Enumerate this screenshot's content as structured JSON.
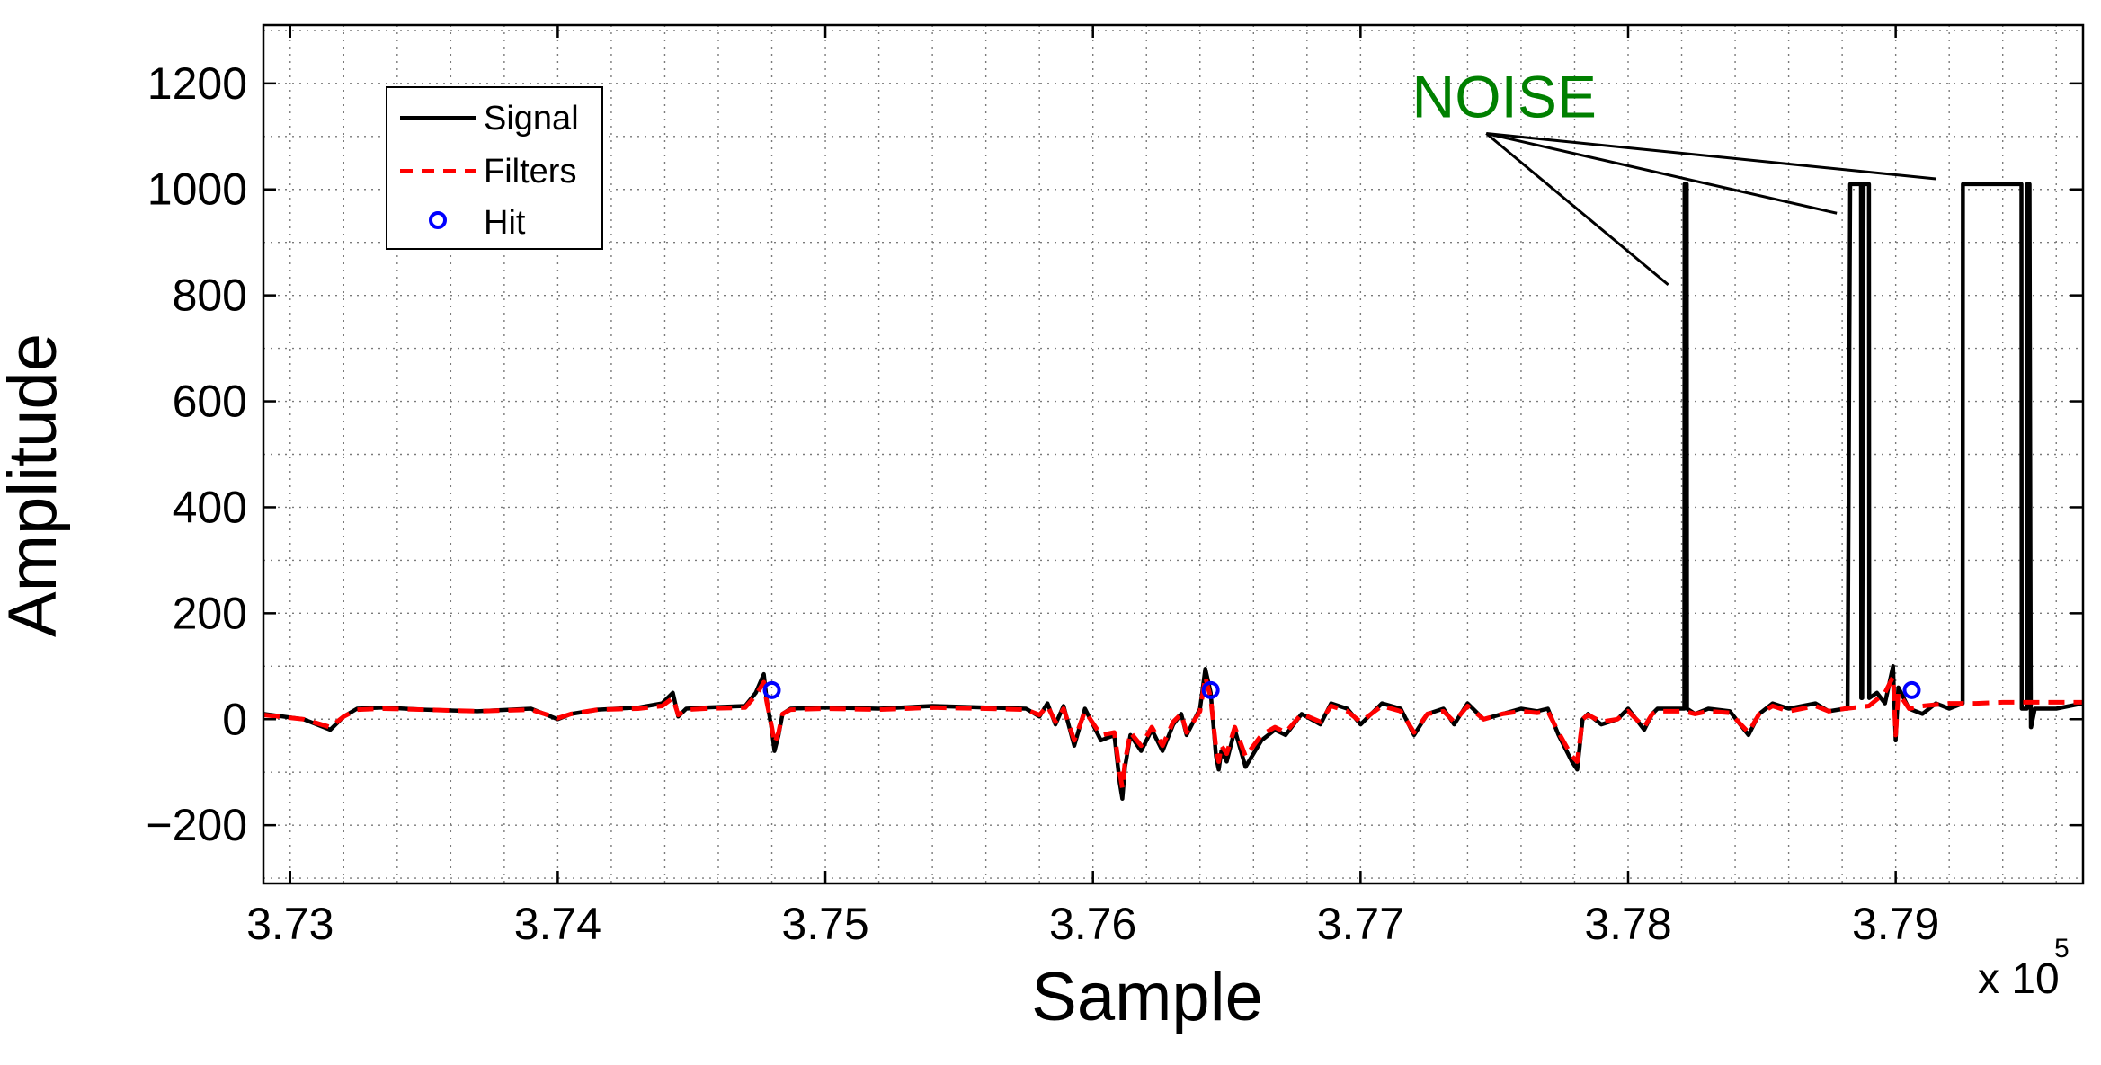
{
  "chart_data": {
    "type": "line",
    "xlabel": "Sample",
    "ylabel": "Amplitude",
    "xlim": [
      372900,
      379700
    ],
    "ylim": [
      -310,
      1310
    ],
    "x_exponent_label": "x 10",
    "x_exponent_power": "5",
    "x_ticks": [
      373000,
      374000,
      375000,
      376000,
      377000,
      378000,
      379000
    ],
    "x_tick_labels": [
      "3.73",
      "3.74",
      "3.75",
      "3.76",
      "3.77",
      "3.78",
      "3.79"
    ],
    "y_ticks": [
      -200,
      0,
      200,
      400,
      600,
      800,
      1000,
      1200
    ],
    "y_tick_labels": [
      "−200",
      "0",
      "200",
      "400",
      "600",
      "800",
      "1000",
      "1200"
    ],
    "grid": true,
    "legend_position": "top-left",
    "legend": [
      {
        "label": "Signal",
        "style": "solid",
        "color": "#000000"
      },
      {
        "label": "Filters",
        "style": "dashed",
        "color": "#ff0000"
      },
      {
        "label": "Hit",
        "style": "marker-circle",
        "color": "#0000ff"
      }
    ],
    "series": [
      {
        "name": "Signal",
        "color": "#000000",
        "style": "solid",
        "x": [
          372900,
          373050,
          373150,
          373200,
          373250,
          373350,
          373500,
          373700,
          373900,
          374000,
          374050,
          374150,
          374300,
          374390,
          374430,
          374450,
          374480,
          374550,
          374700,
          374740,
          374770,
          374780,
          374800,
          374810,
          374825,
          374840,
          374870,
          375000,
          375200,
          375400,
          375600,
          375750,
          375800,
          375830,
          375860,
          375890,
          375930,
          375970,
          376030,
          376080,
          376100,
          376110,
          376120,
          376140,
          376180,
          376220,
          376260,
          376300,
          376330,
          376350,
          376400,
          376420,
          376440,
          376460,
          376470,
          376480,
          376500,
          376530,
          376570,
          376630,
          376680,
          376720,
          376780,
          376850,
          376890,
          376950,
          377000,
          377080,
          377150,
          377200,
          377250,
          377310,
          377350,
          377400,
          377460,
          377530,
          377600,
          377660,
          377700,
          377740,
          377790,
          377810,
          377830,
          377850,
          377900,
          377960,
          378000,
          378060,
          378090,
          378110,
          378210,
          378211,
          378219,
          378220,
          378250,
          378300,
          378380,
          378450,
          378490,
          378540,
          378600,
          378700,
          378750,
          378810,
          378820,
          378830,
          378870,
          378871,
          378875,
          378880,
          378900,
          378901,
          378930,
          378960,
          378990,
          379000,
          379010,
          379050,
          379100,
          379150,
          379200,
          379250,
          379251,
          379470,
          379471,
          379490,
          379491,
          379500,
          379505,
          379506,
          379520,
          379600,
          379700
        ],
        "y": [
          10,
          0,
          -20,
          5,
          20,
          22,
          18,
          15,
          20,
          0,
          10,
          18,
          22,
          30,
          50,
          5,
          20,
          22,
          25,
          50,
          85,
          40,
          -20,
          -60,
          -30,
          10,
          20,
          22,
          20,
          25,
          22,
          20,
          5,
          30,
          -10,
          25,
          -50,
          20,
          -40,
          -30,
          -120,
          -150,
          -90,
          -30,
          -60,
          -20,
          -60,
          -10,
          10,
          -30,
          20,
          95,
          50,
          -70,
          -95,
          -60,
          -80,
          -20,
          -90,
          -40,
          -20,
          -30,
          10,
          -10,
          30,
          20,
          -10,
          30,
          20,
          -30,
          10,
          20,
          -10,
          30,
          0,
          10,
          20,
          15,
          20,
          -30,
          -80,
          -95,
          0,
          10,
          -10,
          0,
          20,
          -20,
          10,
          20,
          20,
          1010,
          1010,
          20,
          10,
          20,
          15,
          -30,
          10,
          30,
          20,
          30,
          15,
          20,
          20,
          1010,
          1010,
          40,
          40,
          1010,
          1010,
          40,
          50,
          30,
          100,
          -40,
          60,
          20,
          10,
          30,
          20,
          30,
          1010,
          1010,
          20,
          20,
          1010,
          1010,
          -15,
          -15,
          20,
          20,
          30
        ]
      },
      {
        "name": "Filters",
        "color": "#ff0000",
        "style": "dashed",
        "x": [
          372900,
          373050,
          373150,
          373200,
          373250,
          373350,
          373500,
          373700,
          373900,
          374000,
          374050,
          374150,
          374300,
          374390,
          374430,
          374450,
          374480,
          374550,
          374700,
          374740,
          374770,
          374780,
          374800,
          374810,
          374825,
          374840,
          374870,
          375000,
          375200,
          375400,
          375600,
          375750,
          375800,
          375830,
          375860,
          375890,
          375930,
          375970,
          376030,
          376080,
          376100,
          376110,
          376120,
          376140,
          376180,
          376220,
          376260,
          376300,
          376330,
          376350,
          376400,
          376420,
          376440,
          376460,
          376470,
          376480,
          376500,
          376530,
          376570,
          376630,
          376680,
          376720,
          376780,
          376850,
          376890,
          376950,
          377000,
          377080,
          377150,
          377200,
          377250,
          377310,
          377350,
          377400,
          377460,
          377530,
          377600,
          377660,
          377700,
          377740,
          377790,
          377810,
          377830,
          377850,
          377900,
          377960,
          378000,
          378060,
          378090,
          378110,
          378210,
          378250,
          378300,
          378380,
          378450,
          378490,
          378540,
          378600,
          378700,
          378750,
          378810,
          378900,
          378960,
          378990,
          379000,
          379010,
          379050,
          379100,
          379200,
          379300,
          379400,
          379500,
          379600,
          379700
        ],
        "y": [
          8,
          0,
          -15,
          5,
          18,
          20,
          18,
          15,
          18,
          2,
          10,
          18,
          20,
          25,
          40,
          8,
          18,
          20,
          22,
          45,
          70,
          35,
          -15,
          -45,
          -25,
          10,
          18,
          20,
          18,
          22,
          20,
          18,
          8,
          25,
          -5,
          20,
          -40,
          15,
          -30,
          -25,
          -100,
          -130,
          -80,
          -25,
          -50,
          -15,
          -50,
          -5,
          10,
          -25,
          15,
          80,
          40,
          -55,
          -80,
          -50,
          -65,
          -15,
          -70,
          -30,
          -15,
          -25,
          10,
          -5,
          25,
          15,
          -5,
          25,
          15,
          -25,
          10,
          15,
          -5,
          25,
          0,
          10,
          15,
          12,
          15,
          -25,
          -70,
          -80,
          0,
          8,
          -5,
          0,
          15,
          -15,
          10,
          15,
          15,
          10,
          15,
          12,
          -25,
          10,
          25,
          15,
          25,
          15,
          20,
          25,
          50,
          80,
          -30,
          50,
          20,
          25,
          30,
          30,
          32,
          32,
          32,
          32
        ]
      }
    ],
    "hits": {
      "x": [
        374800,
        376440,
        379060
      ],
      "y": [
        55,
        55,
        55
      ]
    },
    "annotation": {
      "text": "NOISE",
      "color": "#008000",
      "anchor": {
        "x": 377470,
        "y": 1170
      },
      "targets": [
        {
          "x": 378150,
          "y": 820
        },
        {
          "x": 378780,
          "y": 955
        },
        {
          "x": 379150,
          "y": 1020
        }
      ]
    }
  }
}
